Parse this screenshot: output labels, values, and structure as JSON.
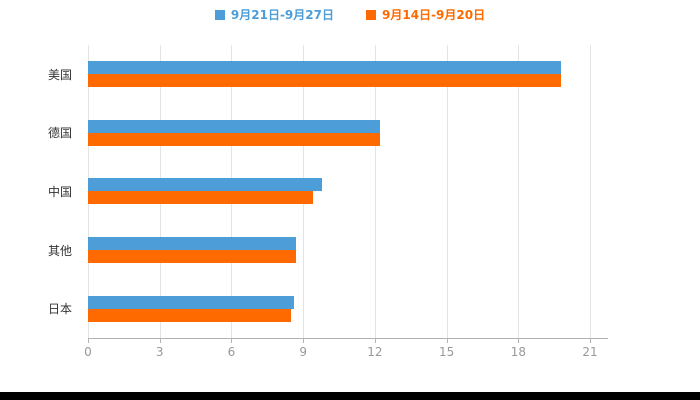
{
  "page": {
    "background_color": "#ffffff",
    "bottom_bar_color": "#000000"
  },
  "legend": {
    "items": [
      {
        "label": "9月21日-9月27日",
        "color": "#4d9ed8"
      },
      {
        "label": "9月14日-9月20日",
        "color": "#ff6a00"
      }
    ]
  },
  "chart_data": {
    "type": "bar",
    "orientation": "horizontal",
    "title": "",
    "xlabel": "",
    "ylabel": "",
    "categories": [
      "美国",
      "德国",
      "中国",
      "其他",
      "日本"
    ],
    "series": [
      {
        "name": "9月21日-9月27日",
        "color": "#4d9ed8",
        "values": [
          19.8,
          12.2,
          9.8,
          8.7,
          8.6
        ]
      },
      {
        "name": "9月14日-9月20日",
        "color": "#ff6a00",
        "values": [
          19.8,
          12.2,
          9.4,
          8.7,
          8.5
        ]
      }
    ],
    "xlim": [
      0,
      21.75
    ],
    "xticks": [
      0,
      3,
      6,
      9,
      12,
      15,
      18,
      21
    ],
    "grid": true,
    "legend_position": "top",
    "axis_colors": {
      "grid": "#e4e4e4",
      "axis_line": "#b3b3b3",
      "tick_label": "#999999",
      "category_label": "#333333"
    }
  }
}
